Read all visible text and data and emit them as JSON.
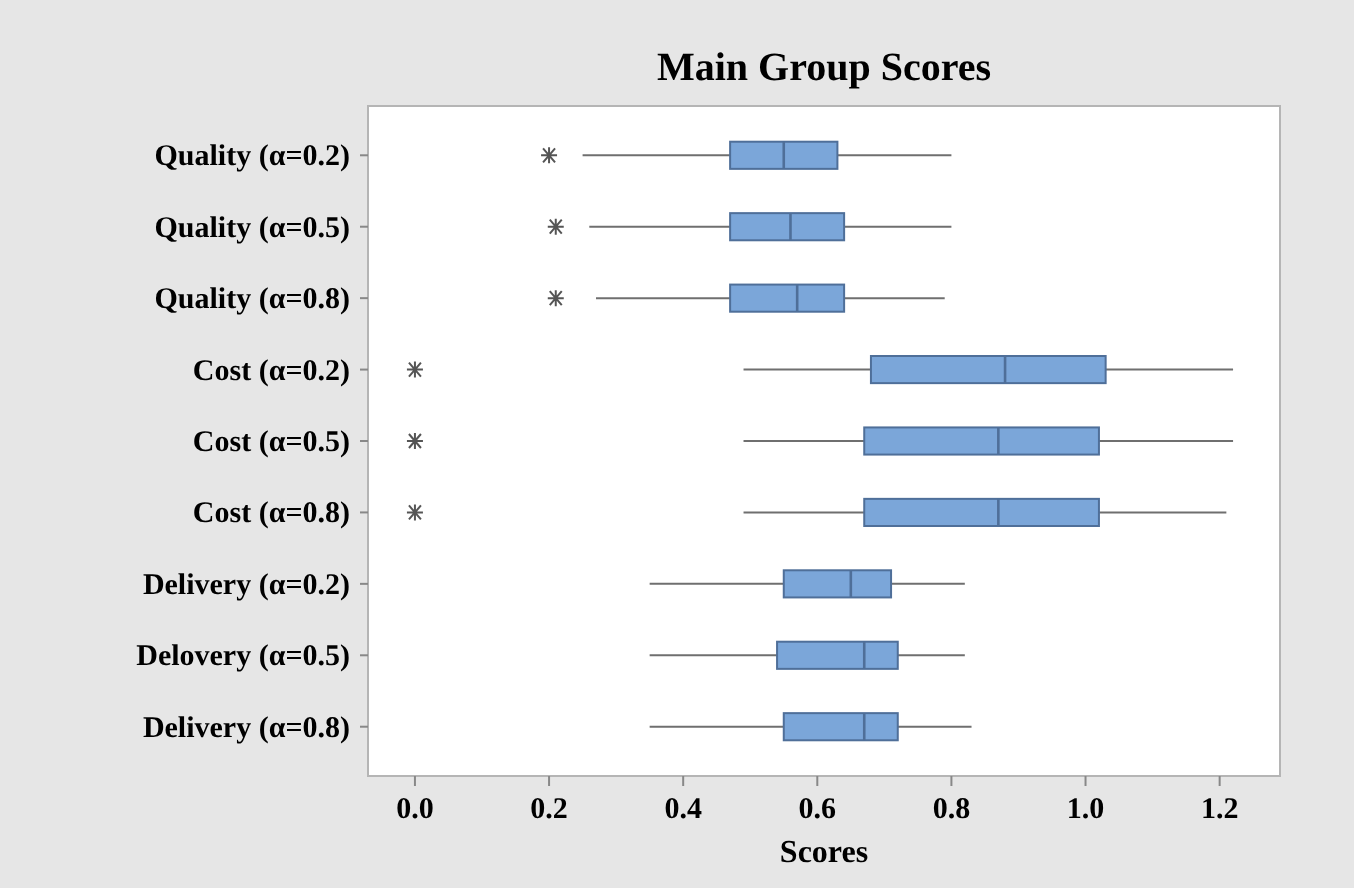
{
  "chart_data": {
    "type": "box",
    "orientation": "horizontal",
    "title": "Main Group Scores",
    "xlabel": "Scores",
    "categories": [
      "Quality (α=0.2)",
      "Quality (α=0.5)",
      "Quality (α=0.8)",
      "Cost (α=0.2)",
      "Cost (α=0.5)",
      "Cost (α=0.8)",
      "Delivery (α=0.2)",
      "Delovery (α=0.5)",
      "Delivery (α=0.8)"
    ],
    "xlim": [
      -0.07,
      1.29
    ],
    "xticks": [
      {
        "value": 0,
        "label": "0.0"
      },
      0.2,
      0.4,
      0.6,
      0.8,
      {
        "value": 1,
        "label": "1.0"
      },
      1.2
    ],
    "color": "#7ba6d9",
    "grid": false,
    "boxes": [
      {
        "low": 0.25,
        "q1": 0.47,
        "median": 0.55,
        "q3": 0.63,
        "high": 0.8,
        "outliers": [
          0.2
        ]
      },
      {
        "low": 0.26,
        "q1": 0.47,
        "median": 0.56,
        "q3": 0.64,
        "high": 0.8,
        "outliers": [
          0.21
        ]
      },
      {
        "low": 0.27,
        "q1": 0.47,
        "median": 0.57,
        "q3": 0.64,
        "high": 0.79,
        "outliers": [
          0.21
        ]
      },
      {
        "low": 0.49,
        "q1": 0.68,
        "median": 0.88,
        "q3": 1.03,
        "high": 1.22,
        "outliers": [
          0
        ]
      },
      {
        "low": 0.49,
        "q1": 0.67,
        "median": 0.87,
        "q3": 1.02,
        "high": 1.22,
        "outliers": [
          0
        ]
      },
      {
        "low": 0.49,
        "q1": 0.67,
        "median": 0.87,
        "q3": 1.02,
        "high": 1.21,
        "outliers": [
          0
        ]
      },
      {
        "low": 0.35,
        "q1": 0.55,
        "median": 0.65,
        "q3": 0.71,
        "high": 0.82
      },
      {
        "low": 0.35,
        "q1": 0.54,
        "median": 0.67,
        "q3": 0.72,
        "high": 0.82
      },
      {
        "low": 0.35,
        "q1": 0.55,
        "median": 0.67,
        "q3": 0.72,
        "high": 0.83
      }
    ]
  }
}
